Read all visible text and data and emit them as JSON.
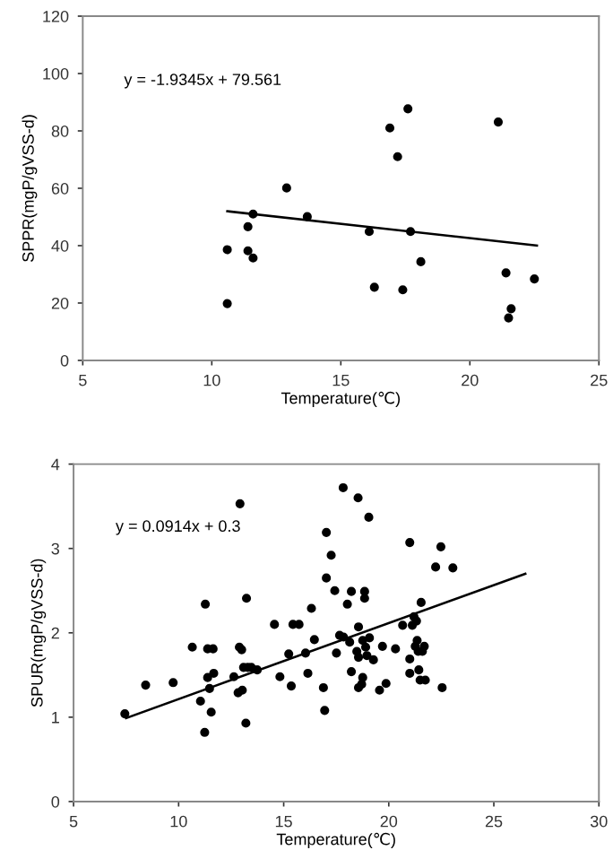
{
  "chart_data": [
    {
      "type": "scatter",
      "xlabel": "Temperature(℃)",
      "ylabel": "SPPR(mgP/gVSS-d)",
      "annotations": [
        "y = -1.9345x + 79.561"
      ],
      "xlim": [
        5,
        25
      ],
      "ylim": [
        0,
        120
      ],
      "xticks": [
        5,
        10,
        15,
        20,
        25
      ],
      "yticks": [
        0,
        20,
        40,
        60,
        80,
        100,
        120
      ],
      "grid": false,
      "legend": false,
      "series": [
        {
          "marker": "circle",
          "color": "#000000",
          "x": [
            10.6,
            10.6,
            11.4,
            11.4,
            11.6,
            11.6,
            12.9,
            13.7,
            16.1,
            16.3,
            16.9,
            17.2,
            17.4,
            17.6,
            17.7,
            18.1,
            21.1,
            21.4,
            21.5,
            21.6,
            22.5
          ],
          "values": [
            38.6,
            19.8,
            46.6,
            38.2,
            51,
            35.7,
            60.1,
            50.1,
            44.9,
            25.5,
            81,
            71,
            24.6,
            87.7,
            44.9,
            34.4,
            83.1,
            30.5,
            14.8,
            18,
            28.4
          ]
        },
        {
          "type": "line",
          "color": "#000000",
          "x": [
            10.6,
            22.6
          ],
          "values": [
            52,
            40
          ]
        }
      ]
    },
    {
      "type": "scatter",
      "xlabel": "Temperature(℃)",
      "ylabel": "SPUR(mgP/gVSS-d)",
      "annotations": [
        "y = 0.0914x + 0.3"
      ],
      "xlim": [
        5,
        30
      ],
      "ylim": [
        0,
        4
      ],
      "xticks": [
        5,
        10,
        15,
        20,
        25,
        30
      ],
      "yticks": [
        0,
        1,
        2,
        3,
        4
      ],
      "grid": false,
      "legend": false,
      "series": [
        {
          "marker": "circle",
          "color": "#000000",
          "x": [
            7.44,
            8.43,
            9.74,
            10.65,
            11.04,
            11.24,
            11.27,
            11.38,
            11.64,
            11.38,
            11.47,
            11.55,
            11.67,
            12.63,
            12.83,
            12.89,
            12.92,
            13.0,
            13.03,
            13.09,
            13.2,
            13.23,
            13.29,
            13.46,
            13.74,
            14.56,
            14.82,
            15.24,
            15.36,
            15.44,
            15.73,
            16.04,
            16.15,
            16.32,
            16.46,
            16.89,
            16.95,
            17.03,
            17.03,
            17.26,
            17.43,
            17.51,
            17.66,
            17.83,
            17.85,
            18.03,
            18.14,
            18.22,
            18.22,
            18.54,
            18.56,
            18.48,
            18.56,
            18.56,
            18.71,
            18.76,
            18.76,
            18.85,
            18.85,
            18.9,
            18.96,
            19.05,
            19.08,
            19.27,
            19.56,
            19.7,
            19.87,
            20.32,
            20.66,
            21.0,
            21.0,
            21.0,
            21.12,
            21.2,
            21.26,
            21.32,
            21.35,
            21.4,
            21.43,
            21.49,
            21.54,
            21.6,
            21.69,
            21.74,
            22.23,
            22.48,
            22.54,
            23.05
          ],
          "values": [
            1.04,
            1.38,
            1.41,
            1.83,
            1.19,
            0.82,
            2.34,
            1.81,
            1.81,
            1.47,
            1.34,
            1.06,
            1.52,
            1.48,
            1.29,
            1.83,
            3.53,
            1.8,
            1.32,
            1.59,
            0.93,
            2.41,
            1.59,
            1.59,
            1.56,
            2.1,
            1.48,
            1.75,
            1.37,
            2.1,
            2.1,
            1.76,
            1.52,
            2.29,
            1.92,
            1.35,
            1.08,
            3.19,
            2.65,
            2.92,
            2.5,
            1.76,
            1.97,
            3.72,
            1.95,
            2.34,
            1.89,
            2.49,
            1.54,
            3.6,
            2.07,
            1.78,
            1.71,
            1.35,
            1.39,
            1.91,
            1.47,
            2.49,
            2.41,
            1.83,
            1.73,
            3.37,
            1.94,
            1.68,
            1.32,
            1.84,
            1.4,
            1.81,
            2.09,
            3.07,
            1.69,
            1.52,
            2.09,
            2.19,
            1.84,
            2.14,
            1.91,
            1.78,
            1.56,
            1.44,
            2.36,
            1.78,
            1.84,
            1.44,
            2.78,
            3.02,
            1.35,
            2.77
          ]
        },
        {
          "type": "line",
          "color": "#000000",
          "x": [
            7.5,
            26.5
          ],
          "values": [
            0.99,
            2.7
          ]
        }
      ]
    }
  ]
}
